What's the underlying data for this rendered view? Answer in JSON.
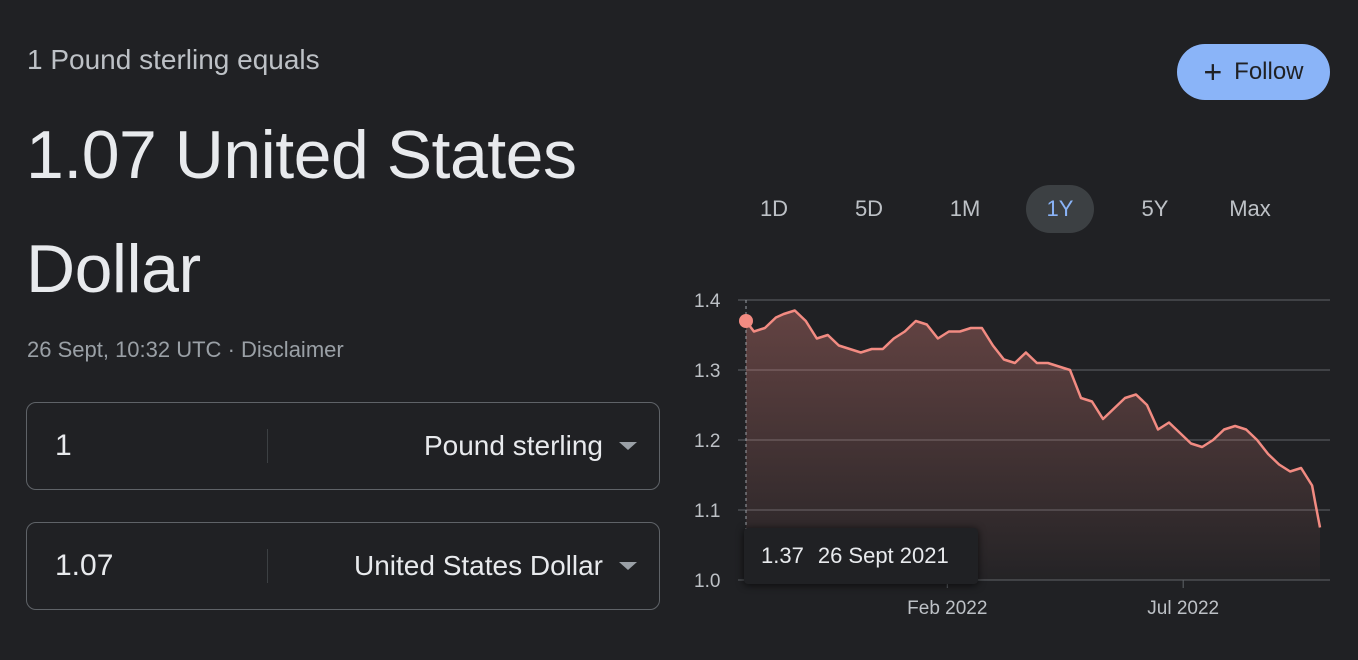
{
  "header": {
    "subtitle": "1 Pound sterling equals",
    "value_line": "1.07 United States Dollar",
    "timestamp": "26 Sept, 10:32 UTC",
    "separator": "·",
    "disclaimer": "Disclaimer"
  },
  "follow_button": {
    "icon": "plus-icon",
    "label": "Follow",
    "color": "#8ab4f8"
  },
  "converter": {
    "from": {
      "amount": "1",
      "currency": "Pound sterling"
    },
    "to": {
      "amount": "1.07",
      "currency": "United States Dollar"
    }
  },
  "ranges": {
    "tabs": [
      "1D",
      "5D",
      "1M",
      "1Y",
      "5Y",
      "Max"
    ],
    "active": "1Y"
  },
  "tooltip": {
    "value": "1.37",
    "date": "26 Sept 2021"
  },
  "colors": {
    "line": "#f28b82",
    "accent": "#8ab4f8",
    "background": "#202124"
  },
  "chart_data": {
    "type": "area",
    "y_ticks": [
      "1.4",
      "1.3",
      "1.2",
      "1.1",
      "1.0"
    ],
    "ylim": [
      1.0,
      1.4
    ],
    "x_ticks": [
      "Feb 2022",
      "Jul 2022"
    ],
    "x_tick_dates": [
      "2022-02-01",
      "2022-07-01"
    ],
    "x_range": [
      "2021-09-26",
      "2022-09-26"
    ],
    "series": [
      {
        "dates": [
          "2021-09-26",
          "2021-10-01",
          "2021-10-08",
          "2021-10-15",
          "2021-10-20",
          "2021-10-27",
          "2021-11-03",
          "2021-11-10",
          "2021-11-17",
          "2021-11-24",
          "2021-12-01",
          "2021-12-08",
          "2021-12-15",
          "2021-12-22",
          "2021-12-29",
          "2022-01-05",
          "2022-01-12",
          "2022-01-19",
          "2022-01-26",
          "2022-02-02",
          "2022-02-09",
          "2022-02-16",
          "2022-02-23",
          "2022-03-02",
          "2022-03-09",
          "2022-03-16",
          "2022-03-23",
          "2022-03-30",
          "2022-04-06",
          "2022-04-13",
          "2022-04-20",
          "2022-04-27",
          "2022-05-04",
          "2022-05-11",
          "2022-05-18",
          "2022-05-25",
          "2022-06-01",
          "2022-06-08",
          "2022-06-15",
          "2022-06-22",
          "2022-06-29",
          "2022-07-06",
          "2022-07-13",
          "2022-07-20",
          "2022-07-27",
          "2022-08-03",
          "2022-08-10",
          "2022-08-17",
          "2022-08-24",
          "2022-08-31",
          "2022-09-07",
          "2022-09-14",
          "2022-09-21",
          "2022-09-23",
          "2022-09-26"
        ],
        "values": [
          1.37,
          1.355,
          1.36,
          1.375,
          1.38,
          1.385,
          1.37,
          1.345,
          1.35,
          1.335,
          1.33,
          1.325,
          1.33,
          1.33,
          1.345,
          1.355,
          1.37,
          1.365,
          1.345,
          1.355,
          1.355,
          1.36,
          1.36,
          1.335,
          1.315,
          1.31,
          1.325,
          1.31,
          1.31,
          1.305,
          1.3,
          1.26,
          1.255,
          1.23,
          1.245,
          1.26,
          1.265,
          1.25,
          1.215,
          1.225,
          1.21,
          1.195,
          1.19,
          1.2,
          1.215,
          1.22,
          1.215,
          1.2,
          1.18,
          1.165,
          1.155,
          1.16,
          1.135,
          1.11,
          1.075
        ]
      }
    ]
  }
}
